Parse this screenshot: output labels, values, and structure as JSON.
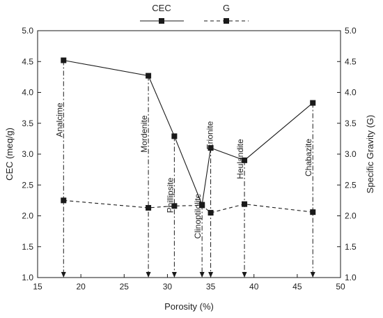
{
  "chart_data": {
    "type": "line",
    "title": "",
    "xlabel": "Porosity (%)",
    "ylabel_left": "CEC (meq/g)",
    "ylabel_right": "Specific Gravity (G)",
    "xlim": [
      15,
      50
    ],
    "ylim_left": [
      1.0,
      5.0
    ],
    "ylim_right": [
      1.0,
      5.0
    ],
    "xticks": [
      15,
      20,
      25,
      30,
      35,
      40,
      45,
      50
    ],
    "yticks": [
      1.0,
      1.5,
      2.0,
      2.5,
      3.0,
      3.5,
      4.0,
      4.5,
      5.0
    ],
    "yticks_right": [
      1.0,
      1.5,
      2.0,
      2.5,
      3.0,
      3.5,
      4.0,
      4.5,
      5.0
    ],
    "grid": false,
    "legend_position": "top-center",
    "minerals": [
      {
        "name": "Analcime",
        "porosity": 18,
        "cec": 4.52,
        "g": 2.25
      },
      {
        "name": "Mordenite",
        "porosity": 27.8,
        "cec": 4.27,
        "g": 2.13
      },
      {
        "name": "Phillipsite",
        "porosity": 30.8,
        "cec": 3.29,
        "g": 2.16
      },
      {
        "name": "Clinoptilolite",
        "porosity": 34,
        "cec": 2.18,
        "g": 2.17
      },
      {
        "name": "Erionite",
        "porosity": 35,
        "cec": 3.1,
        "g": 2.05
      },
      {
        "name": "Heulandite",
        "porosity": 38.9,
        "cec": 2.9,
        "g": 2.19
      },
      {
        "name": "Chabazite",
        "porosity": 46.8,
        "cec": 3.83,
        "g": 2.06
      }
    ],
    "series": [
      {
        "name": "CEC",
        "axis": "left",
        "style": "solid",
        "color": "#1a1a1a"
      },
      {
        "name": "G",
        "axis": "right",
        "style": "dashed",
        "color": "#1a1a1a"
      }
    ]
  }
}
